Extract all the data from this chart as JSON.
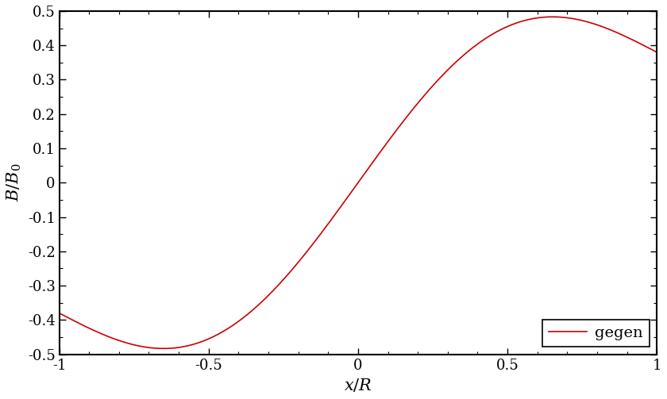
{
  "xlim": [
    -1,
    1
  ],
  "ylim": [
    -0.5,
    0.5
  ],
  "xlabel": "$x/R$",
  "ylabel": "$B/B_0$",
  "xticks": [
    -1,
    -0.5,
    0,
    0.5,
    1
  ],
  "yticks": [
    -0.5,
    -0.4,
    -0.3,
    -0.2,
    -0.1,
    0,
    0.1,
    0.2,
    0.3,
    0.4,
    0.5
  ],
  "line_color": "#cc0000",
  "line_label": "gegen",
  "legend_loc": "lower right",
  "font_family": "serif",
  "label_fontsize": 15,
  "tick_fontsize": 13,
  "legend_fontsize": 14,
  "curve_a": 0.265,
  "curve_b": 0.38,
  "line_width": 1.2,
  "spine_linewidth": 1.5
}
